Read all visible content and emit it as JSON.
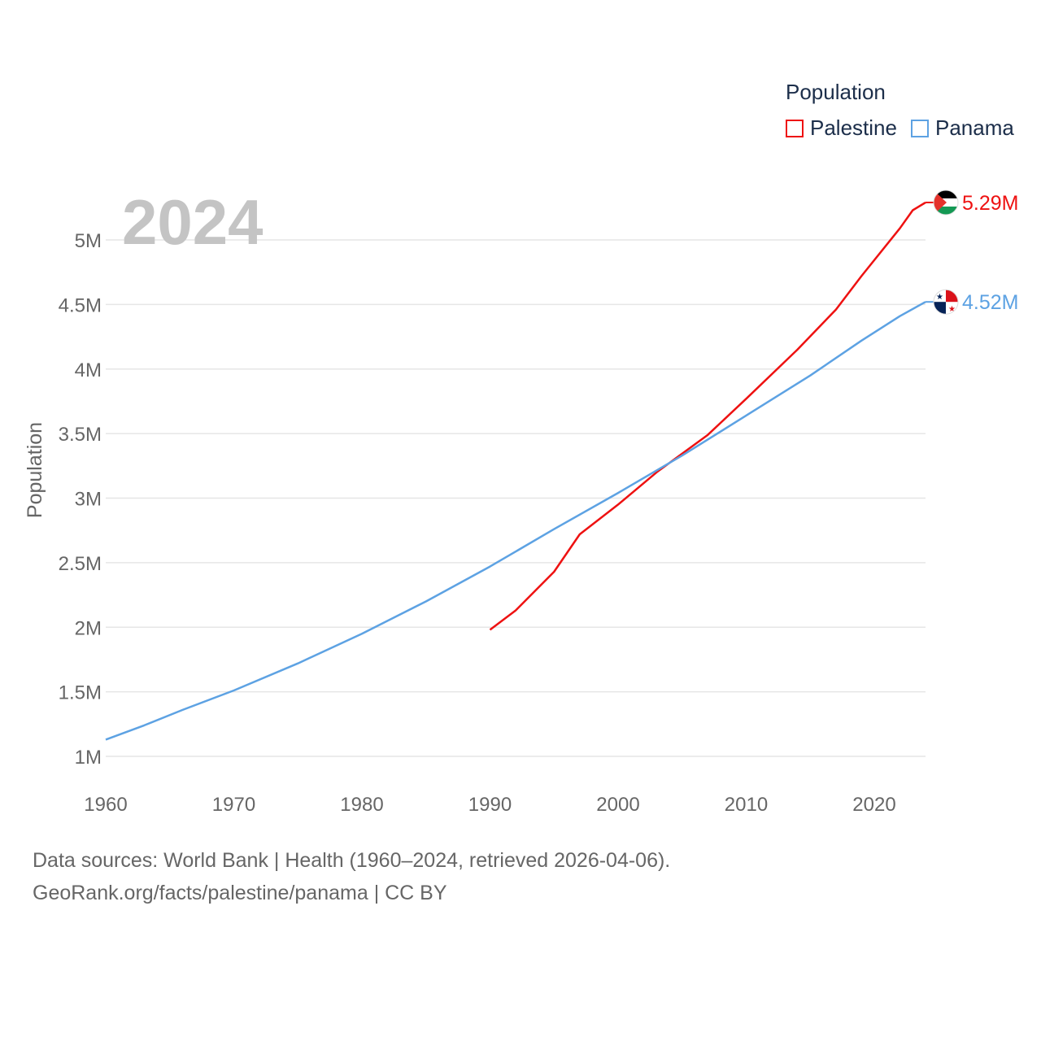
{
  "chart_data": {
    "type": "line",
    "year_label": "2024",
    "ylabel": "Population",
    "xlabel": "",
    "xlim": [
      1960,
      2024
    ],
    "ylim": [
      1000000,
      5250000
    ],
    "x_ticks": [
      1960,
      1970,
      1980,
      1990,
      2000,
      2010,
      2020
    ],
    "y_ticks": [
      {
        "value": 1000000,
        "label": "1M"
      },
      {
        "value": 1500000,
        "label": "1.5M"
      },
      {
        "value": 2000000,
        "label": "2M"
      },
      {
        "value": 2500000,
        "label": "2.5M"
      },
      {
        "value": 3000000,
        "label": "3M"
      },
      {
        "value": 3500000,
        "label": "3.5M"
      },
      {
        "value": 4000000,
        "label": "4M"
      },
      {
        "value": 4500000,
        "label": "4.5M"
      },
      {
        "value": 5000000,
        "label": "5M"
      }
    ],
    "legend_title": "Population",
    "series": [
      {
        "name": "Palestine",
        "color": "#ee1111",
        "end_label": "5.29M",
        "flag": "palestine-flag",
        "points": [
          [
            1990,
            1980000
          ],
          [
            1992,
            2130000
          ],
          [
            1995,
            2430000
          ],
          [
            1997,
            2720000
          ],
          [
            2000,
            2950000
          ],
          [
            2003,
            3200000
          ],
          [
            2007,
            3490000
          ],
          [
            2010,
            3770000
          ],
          [
            2014,
            4150000
          ],
          [
            2017,
            4460000
          ],
          [
            2019,
            4720000
          ],
          [
            2022,
            5090000
          ],
          [
            2023,
            5230000
          ],
          [
            2024,
            5290000
          ]
        ]
      },
      {
        "name": "Panama",
        "color": "#5da2e3",
        "end_label": "4.52M",
        "flag": "panama-flag",
        "points": [
          [
            1960,
            1130000
          ],
          [
            1963,
            1240000
          ],
          [
            1966,
            1360000
          ],
          [
            1970,
            1510000
          ],
          [
            1975,
            1720000
          ],
          [
            1980,
            1950000
          ],
          [
            1985,
            2200000
          ],
          [
            1990,
            2470000
          ],
          [
            1995,
            2760000
          ],
          [
            2000,
            3040000
          ],
          [
            2005,
            3330000
          ],
          [
            2010,
            3640000
          ],
          [
            2015,
            3950000
          ],
          [
            2019,
            4220000
          ],
          [
            2022,
            4410000
          ],
          [
            2024,
            4520000
          ]
        ]
      }
    ]
  },
  "footer": {
    "line1": "Data sources: World Bank | Health (1960–2024, retrieved 2026-04-06).",
    "line2": "GeoRank.org/facts/palestine/panama | CC BY"
  }
}
